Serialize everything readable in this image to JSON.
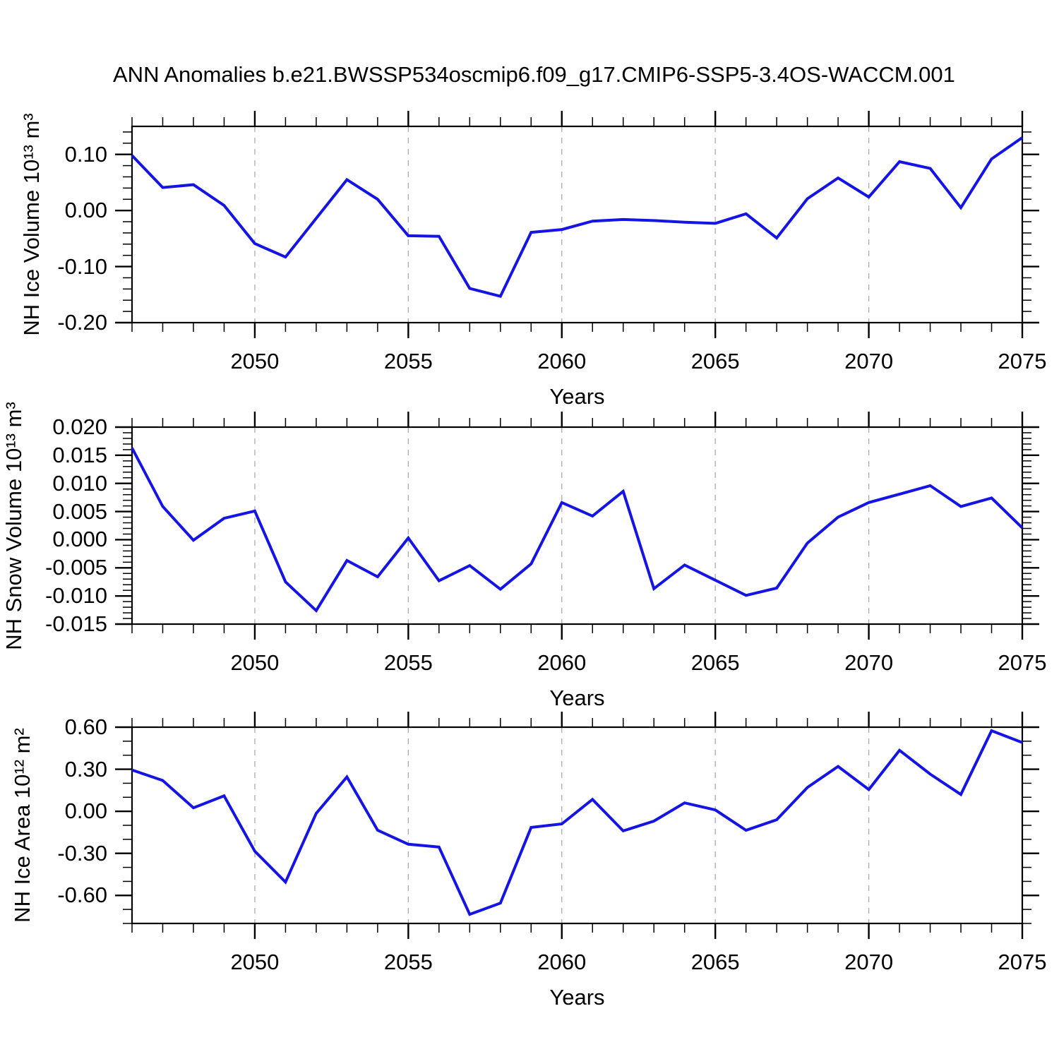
{
  "title": "ANN Anomalies b.e21.BWSSP534oscmip6.f09_g17.CMIP6-SSP5-3.4OS-WACCM.001",
  "colors": {
    "line": "#1414e6",
    "grid": "#aaaaaa",
    "axis": "#000000",
    "text": "#000000"
  },
  "chart_data": [
    {
      "type": "line",
      "ylabel": "NH Ice Volume 10¹³ m³",
      "xlabel": "Years",
      "x": [
        2046,
        2047,
        2048,
        2049,
        2050,
        2051,
        2052,
        2053,
        2054,
        2055,
        2056,
        2057,
        2058,
        2059,
        2060,
        2061,
        2062,
        2063,
        2064,
        2065,
        2066,
        2067,
        2068,
        2069,
        2070,
        2071,
        2072,
        2073,
        2074,
        2075
      ],
      "values": [
        0.098,
        0.041,
        0.046,
        0.009,
        -0.059,
        -0.083,
        -0.014,
        0.055,
        0.02,
        -0.045,
        -0.046,
        -0.139,
        -0.153,
        -0.039,
        -0.034,
        -0.019,
        -0.016,
        -0.018,
        -0.021,
        -0.023,
        -0.006,
        -0.049,
        0.021,
        0.058,
        0.024,
        0.087,
        0.075,
        0.005,
        0.092,
        0.13
      ],
      "xlim": [
        2046,
        2075
      ],
      "ylim": [
        -0.2,
        0.15
      ],
      "yticks": [
        {
          "v": 0.1,
          "label": "0.10"
        },
        {
          "v": 0.0,
          "label": "0.00"
        },
        {
          "v": -0.1,
          "label": "-0.10"
        },
        {
          "v": -0.2,
          "label": "-0.20"
        }
      ],
      "yminor_step": 0.02,
      "xticks_major": [
        2050,
        2055,
        2060,
        2065,
        2070,
        2075
      ],
      "xminor_step": 1,
      "grid_years": [
        2050,
        2055,
        2060,
        2065,
        2070
      ],
      "grid": "vertical-dashed",
      "legend": "none"
    },
    {
      "type": "line",
      "ylabel": "NH Snow Volume 10¹³ m³",
      "xlabel": "Years",
      "x": [
        2046,
        2047,
        2048,
        2049,
        2050,
        2051,
        2052,
        2053,
        2054,
        2055,
        2056,
        2057,
        2058,
        2059,
        2060,
        2061,
        2062,
        2063,
        2064,
        2065,
        2066,
        2067,
        2068,
        2069,
        2070,
        2071,
        2072,
        2073,
        2074,
        2075
      ],
      "values": [
        0.0163,
        0.0059,
        -0.0001,
        0.0038,
        0.0051,
        -0.0075,
        -0.0126,
        -0.0037,
        -0.0066,
        0.0003,
        -0.0073,
        -0.0046,
        -0.0088,
        -0.0043,
        0.0066,
        0.0042,
        0.0086,
        -0.0087,
        -0.0045,
        -0.0072,
        -0.0099,
        -0.0086,
        -0.0006,
        0.004,
        0.0066,
        0.0081,
        0.0096,
        0.0059,
        0.0074,
        0.0021
      ],
      "xlim": [
        2046,
        2075
      ],
      "ylim": [
        -0.015,
        0.02
      ],
      "yticks": [
        {
          "v": 0.02,
          "label": "0.020"
        },
        {
          "v": 0.015,
          "label": "0.015"
        },
        {
          "v": 0.01,
          "label": "0.010"
        },
        {
          "v": 0.005,
          "label": "0.005"
        },
        {
          "v": 0.0,
          "label": "0.000"
        },
        {
          "v": -0.005,
          "label": "-0.005"
        },
        {
          "v": -0.01,
          "label": "-0.010"
        },
        {
          "v": -0.015,
          "label": "-0.015"
        }
      ],
      "yminor_step": 0.001,
      "xticks_major": [
        2050,
        2055,
        2060,
        2065,
        2070,
        2075
      ],
      "xminor_step": 1,
      "grid_years": [
        2050,
        2055,
        2060,
        2065,
        2070
      ],
      "grid": "vertical-dashed",
      "legend": "none"
    },
    {
      "type": "line",
      "ylabel": "NH Ice Area 10¹² m²",
      "xlabel": "Years",
      "x": [
        2046,
        2047,
        2048,
        2049,
        2050,
        2051,
        2052,
        2053,
        2054,
        2055,
        2056,
        2057,
        2058,
        2059,
        2060,
        2061,
        2062,
        2063,
        2064,
        2065,
        2066,
        2067,
        2068,
        2069,
        2070,
        2071,
        2072,
        2073,
        2074,
        2075
      ],
      "values": [
        0.295,
        0.22,
        0.025,
        0.11,
        -0.285,
        -0.505,
        -0.015,
        0.245,
        -0.135,
        -0.235,
        -0.255,
        -0.735,
        -0.655,
        -0.115,
        -0.09,
        0.085,
        -0.14,
        -0.07,
        0.06,
        0.01,
        -0.135,
        -0.06,
        0.17,
        0.32,
        0.155,
        0.435,
        0.265,
        0.12,
        0.575,
        0.49
      ],
      "xlim": [
        2046,
        2075
      ],
      "ylim": [
        -0.8,
        0.6
      ],
      "yticks": [
        {
          "v": 0.6,
          "label": "0.60"
        },
        {
          "v": 0.3,
          "label": "0.30"
        },
        {
          "v": 0.0,
          "label": "0.00"
        },
        {
          "v": -0.3,
          "label": "-0.30"
        },
        {
          "v": -0.6,
          "label": "-0.60"
        }
      ],
      "yminor_step": 0.1,
      "xticks_major": [
        2050,
        2055,
        2060,
        2065,
        2070,
        2075
      ],
      "xminor_step": 1,
      "grid_years": [
        2050,
        2055,
        2060,
        2065,
        2070
      ],
      "grid": "vertical-dashed",
      "legend": "none"
    }
  ]
}
